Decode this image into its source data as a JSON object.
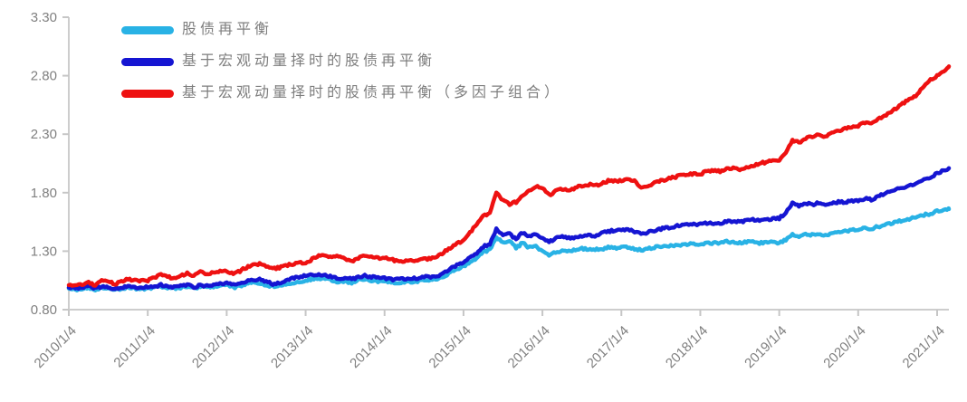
{
  "chart_data": {
    "type": "line",
    "title": "",
    "xlabel": "",
    "ylabel": "",
    "ylim": [
      0.8,
      3.3
    ],
    "y_tick_labels": [
      "0.80",
      "1.30",
      "1.80",
      "2.30",
      "2.80",
      "3.30"
    ],
    "x_tick_labels": [
      "2010/1/4",
      "2011/1/4",
      "2012/1/4",
      "2013/1/4",
      "2014/1/4",
      "2015/1/4",
      "2016/1/4",
      "2017/1/4",
      "2018/1/4",
      "2019/1/4",
      "2020/1/4",
      "2021/1/4"
    ],
    "x_resolution": "monthly, 2010-01 through 2021-03",
    "grid": false,
    "legend_position": "top-left",
    "axis_color": "#cdcdcd",
    "tick_color": "#c6c6c6",
    "tick_label_color": "#808080",
    "series": [
      {
        "name": "股债再平衡",
        "color": "#29b2e5",
        "values": [
          0.98,
          0.97,
          0.98,
          0.99,
          0.97,
          0.99,
          0.98,
          0.97,
          0.98,
          0.99,
          0.98,
          0.98,
          0.98,
          0.99,
          1.0,
          0.99,
          0.98,
          0.99,
          1.0,
          0.98,
          1.0,
          0.99,
          1.0,
          1.01,
          1.01,
          0.99,
          1.0,
          1.02,
          1.03,
          1.03,
          1.01,
          1.0,
          1.01,
          1.02,
          1.03,
          1.04,
          1.05,
          1.06,
          1.07,
          1.06,
          1.05,
          1.03,
          1.04,
          1.03,
          1.05,
          1.06,
          1.05,
          1.04,
          1.04,
          1.03,
          1.03,
          1.03,
          1.04,
          1.04,
          1.05,
          1.05,
          1.06,
          1.08,
          1.12,
          1.15,
          1.17,
          1.2,
          1.24,
          1.29,
          1.31,
          1.42,
          1.37,
          1.39,
          1.33,
          1.37,
          1.33,
          1.34,
          1.3,
          1.27,
          1.29,
          1.3,
          1.3,
          1.31,
          1.32,
          1.32,
          1.31,
          1.32,
          1.33,
          1.33,
          1.33,
          1.33,
          1.32,
          1.31,
          1.32,
          1.33,
          1.34,
          1.34,
          1.35,
          1.35,
          1.36,
          1.36,
          1.36,
          1.37,
          1.37,
          1.37,
          1.38,
          1.38,
          1.37,
          1.38,
          1.38,
          1.37,
          1.38,
          1.38,
          1.37,
          1.4,
          1.44,
          1.43,
          1.44,
          1.44,
          1.45,
          1.44,
          1.45,
          1.46,
          1.47,
          1.48,
          1.49,
          1.5,
          1.49,
          1.51,
          1.52,
          1.54,
          1.55,
          1.57,
          1.58,
          1.59,
          1.61,
          1.62,
          1.64,
          1.65,
          1.66
        ]
      },
      {
        "name": "基于宏观动量择时的股债再平衡",
        "color": "#1515d2",
        "values": [
          0.99,
          0.98,
          0.99,
          1.0,
          0.98,
          1.0,
          0.99,
          0.98,
          0.99,
          1.0,
          0.99,
          0.99,
          0.99,
          1.0,
          1.01,
          1.0,
          0.99,
          1.0,
          1.01,
          0.99,
          1.01,
          1.0,
          1.01,
          1.02,
          1.03,
          1.01,
          1.02,
          1.04,
          1.05,
          1.06,
          1.04,
          1.02,
          1.03,
          1.05,
          1.07,
          1.08,
          1.09,
          1.1,
          1.1,
          1.09,
          1.08,
          1.06,
          1.07,
          1.06,
          1.08,
          1.09,
          1.08,
          1.07,
          1.07,
          1.06,
          1.06,
          1.06,
          1.07,
          1.07,
          1.08,
          1.08,
          1.09,
          1.11,
          1.15,
          1.18,
          1.21,
          1.24,
          1.28,
          1.34,
          1.36,
          1.49,
          1.43,
          1.45,
          1.4,
          1.46,
          1.43,
          1.44,
          1.42,
          1.38,
          1.41,
          1.42,
          1.41,
          1.42,
          1.43,
          1.44,
          1.43,
          1.45,
          1.47,
          1.48,
          1.48,
          1.48,
          1.47,
          1.45,
          1.46,
          1.47,
          1.49,
          1.5,
          1.51,
          1.52,
          1.53,
          1.53,
          1.53,
          1.54,
          1.54,
          1.54,
          1.55,
          1.56,
          1.55,
          1.56,
          1.57,
          1.56,
          1.57,
          1.58,
          1.58,
          1.63,
          1.71,
          1.69,
          1.71,
          1.7,
          1.71,
          1.7,
          1.71,
          1.72,
          1.72,
          1.73,
          1.73,
          1.75,
          1.74,
          1.77,
          1.79,
          1.81,
          1.83,
          1.85,
          1.86,
          1.88,
          1.91,
          1.93,
          1.97,
          1.99,
          2.01
        ]
      },
      {
        "name": "基于宏观动量择时的股债再平衡（多因子组合）",
        "color": "#ee1111",
        "values": [
          1.01,
          1.0,
          1.02,
          1.03,
          1.01,
          1.05,
          1.04,
          1.02,
          1.04,
          1.06,
          1.05,
          1.05,
          1.05,
          1.07,
          1.1,
          1.08,
          1.07,
          1.09,
          1.11,
          1.09,
          1.12,
          1.1,
          1.12,
          1.13,
          1.13,
          1.11,
          1.13,
          1.16,
          1.18,
          1.19,
          1.17,
          1.15,
          1.16,
          1.18,
          1.19,
          1.2,
          1.2,
          1.23,
          1.26,
          1.26,
          1.25,
          1.26,
          1.23,
          1.21,
          1.24,
          1.26,
          1.25,
          1.24,
          1.24,
          1.23,
          1.21,
          1.21,
          1.22,
          1.22,
          1.23,
          1.24,
          1.26,
          1.29,
          1.33,
          1.36,
          1.4,
          1.46,
          1.53,
          1.6,
          1.62,
          1.8,
          1.73,
          1.7,
          1.72,
          1.77,
          1.82,
          1.85,
          1.84,
          1.78,
          1.81,
          1.83,
          1.82,
          1.84,
          1.86,
          1.87,
          1.86,
          1.88,
          1.9,
          1.9,
          1.9,
          1.92,
          1.9,
          1.84,
          1.86,
          1.88,
          1.9,
          1.92,
          1.93,
          1.95,
          1.96,
          1.96,
          1.96,
          1.98,
          1.99,
          1.98,
          2.0,
          2.01,
          2.0,
          2.02,
          2.03,
          2.05,
          2.06,
          2.07,
          2.08,
          2.15,
          2.25,
          2.23,
          2.26,
          2.28,
          2.3,
          2.28,
          2.31,
          2.33,
          2.35,
          2.36,
          2.37,
          2.4,
          2.39,
          2.43,
          2.46,
          2.49,
          2.53,
          2.57,
          2.6,
          2.64,
          2.71,
          2.77,
          2.8,
          2.83,
          2.88
        ]
      }
    ]
  }
}
